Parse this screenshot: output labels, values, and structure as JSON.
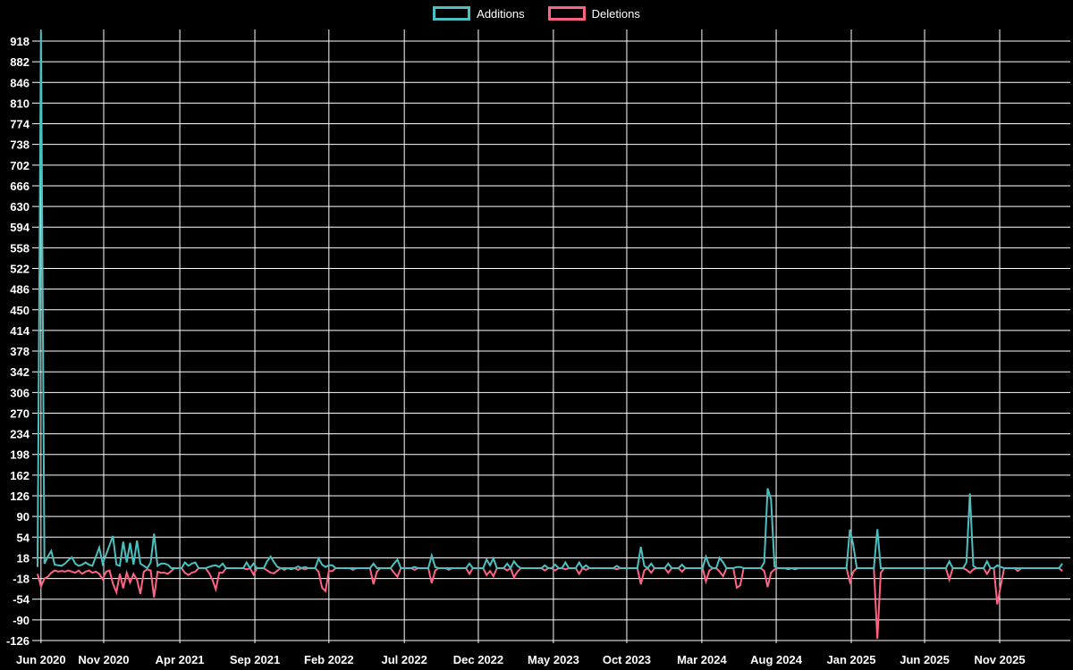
{
  "chart_data": {
    "type": "line",
    "title": "",
    "background_color": "#000000",
    "grid": true,
    "grid_color": "#ffffff",
    "axis_text_color": "#ffffff",
    "legend_position": "top center",
    "x_axis": {
      "unit": "week",
      "point_count": 300,
      "tick_labels": [
        "Jun 2020",
        "Nov 2020",
        "Apr 2021",
        "Sep 2021",
        "Feb 2022",
        "Jul 2022",
        "Dec 2022",
        "May 2023",
        "Oct 2023",
        "Mar 2024",
        "Aug 2024",
        "Jan 2025",
        "Jun 2025",
        "Nov 2025"
      ],
      "tick_week_positions": [
        1.0,
        19.3,
        41.5,
        63.4,
        85.0,
        107.0,
        128.6,
        150.5,
        171.9,
        193.8,
        215.5,
        237.4,
        258.8,
        280.7
      ]
    },
    "y_axis": {
      "tick_labels": [
        918,
        882,
        846,
        810,
        774,
        738,
        702,
        666,
        630,
        594,
        558,
        522,
        486,
        450,
        414,
        378,
        342,
        306,
        270,
        234,
        198,
        162,
        126,
        90,
        54,
        18,
        -18,
        -54,
        -90,
        -126
      ],
      "min_label": -126,
      "max_label": 918,
      "step": 36,
      "zero_baseline": 0
    },
    "series": [
      {
        "name": "Deletions",
        "color": "#ff6384",
        "default_value": 0,
        "points": {
          "0": -10,
          "1": -32,
          "2": -18,
          "3": -15,
          "4": -8,
          "5": -4,
          "6": -6,
          "7": -5,
          "8": -6,
          "9": -4,
          "10": -6,
          "11": -8,
          "12": -4,
          "13": -10,
          "14": -6,
          "15": -4,
          "16": -8,
          "17": -6,
          "18": -10,
          "19": -19,
          "20": -6,
          "21": -4,
          "22": -27,
          "23": -42,
          "24": -10,
          "25": -35,
          "26": -8,
          "27": -25,
          "28": -10,
          "29": -20,
          "30": -45,
          "31": -6,
          "32": -2,
          "33": -4,
          "34": -51,
          "35": -6,
          "36": -8,
          "37": -8,
          "38": -10,
          "39": -5,
          "43": -8,
          "44": -12,
          "45": -8,
          "46": -6,
          "50": -8,
          "51": -20,
          "52": -37,
          "53": -8,
          "54": -8,
          "61": -2,
          "63": -11,
          "67": -4,
          "68": -8,
          "69": -9,
          "70": -4,
          "72": -3,
          "74": -2,
          "76": -3,
          "78": -2,
          "82": -6,
          "83": -34,
          "84": -40,
          "85": -5,
          "86": -5,
          "92": -3,
          "98": -28,
          "99": -6,
          "104": -8,
          "105": -15,
          "110": -3,
          "115": -26,
          "116": -4,
          "120": -3,
          "126": -10,
          "131": -12,
          "132": -5,
          "133": -14,
          "137": -4,
          "139": -16,
          "140": -6,
          "148": -4,
          "151": -4,
          "154": -2,
          "158": -10,
          "160": -3,
          "169": -2,
          "176": -28,
          "177": -4,
          "179": -8,
          "184": -8,
          "188": -6,
          "195": -23,
          "196": -4,
          "199": -6,
          "200": -14,
          "204": -34,
          "205": -30,
          "212": -5,
          "213": -33,
          "214": -8,
          "215": -2,
          "219": -2,
          "221": -2,
          "237": -24,
          "238": -6,
          "245": -123,
          "246": -8,
          "266": -20,
          "271": -3,
          "272": -8,
          "273": -2,
          "277": -10,
          "280": -63,
          "281": -30,
          "286": -5,
          "299": -5
        }
      },
      {
        "name": "Additions",
        "color": "#4bc0c0",
        "default_value": 0,
        "points": {
          "0": 2,
          "1": 936,
          "2": 8,
          "3": 20,
          "4": 30,
          "5": 6,
          "6": 5,
          "7": 4,
          "8": 8,
          "9": 14,
          "10": 19,
          "11": 8,
          "12": 4,
          "13": 6,
          "14": 10,
          "15": 6,
          "16": 4,
          "17": 20,
          "18": 36,
          "19": 8,
          "20": 24,
          "21": 40,
          "22": 56,
          "23": 6,
          "24": 4,
          "25": 46,
          "26": 10,
          "27": 44,
          "28": 6,
          "29": 48,
          "30": 8,
          "31": 4,
          "33": 10,
          "34": 60,
          "35": 4,
          "36": 8,
          "37": 8,
          "38": 6,
          "43": 10,
          "44": 4,
          "45": 8,
          "46": 10,
          "50": 2,
          "51": 4,
          "52": 5,
          "53": 2,
          "54": 8,
          "61": 10,
          "63": 8,
          "67": 12,
          "68": 20,
          "69": 10,
          "70": 2,
          "76": 3,
          "78": 2,
          "82": 17,
          "83": 6,
          "84": 2,
          "85": 5,
          "86": 5,
          "98": 8,
          "104": 8,
          "105": 15,
          "110": 2,
          "115": 22,
          "116": 2,
          "126": 8,
          "131": 15,
          "132": 5,
          "133": 17,
          "137": 8,
          "139": 12,
          "140": 4,
          "148": 5,
          "151": 6,
          "154": 10,
          "158": 10,
          "160": 5,
          "169": 4,
          "176": 37,
          "177": 4,
          "179": 8,
          "184": 8,
          "188": 6,
          "195": 20,
          "196": 4,
          "199": 18,
          "200": 10,
          "204": 2,
          "205": 2,
          "212": 10,
          "213": 139,
          "214": 120,
          "215": 3,
          "237": 67,
          "238": 40,
          "245": 68,
          "266": 12,
          "271": 10,
          "272": 130,
          "273": 4,
          "277": 12,
          "280": 5,
          "281": 2,
          "299": 8
        }
      }
    ]
  }
}
